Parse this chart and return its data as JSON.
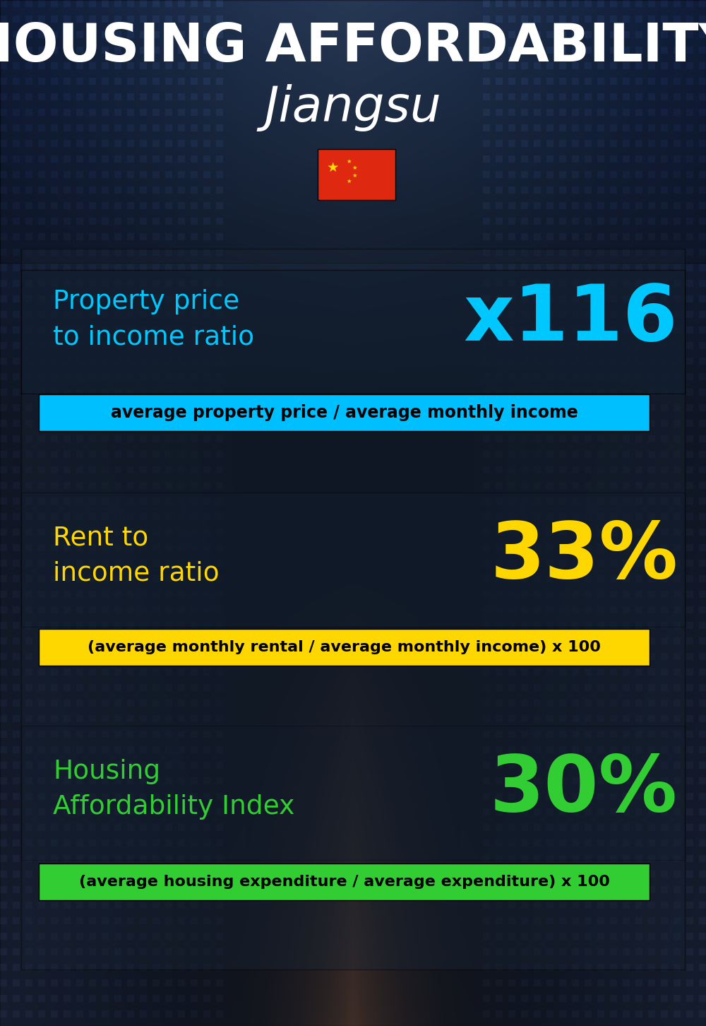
{
  "title_line1": "HOUSING AFFORDABILITY",
  "title_line2": "Jiangsu",
  "bg_color": "#080d15",
  "section1_label": "Property price\nto income ratio",
  "section1_value": "x116",
  "section1_label_color": "#00c8ff",
  "section1_value_color": "#00c8ff",
  "section1_sublabel": "average property price / average monthly income",
  "section1_sublabel_bg": "#00bfff",
  "section2_label": "Rent to\nincome ratio",
  "section2_value": "33%",
  "section2_label_color": "#ffd700",
  "section2_value_color": "#ffd700",
  "section2_sublabel": "(average monthly rental / average monthly income) x 100",
  "section2_sublabel_bg": "#ffd700",
  "section3_label": "Housing\nAffordability Index",
  "section3_value": "30%",
  "section3_label_color": "#32cd32",
  "section3_value_color": "#32cd32",
  "section3_sublabel": "(average housing expenditure / average expenditure) x 100",
  "section3_sublabel_bg": "#32cd32",
  "title_color": "#ffffff",
  "subtitle_color": "#ffffff",
  "flag_red": "#de2910",
  "flag_yellow": "#ffde00"
}
